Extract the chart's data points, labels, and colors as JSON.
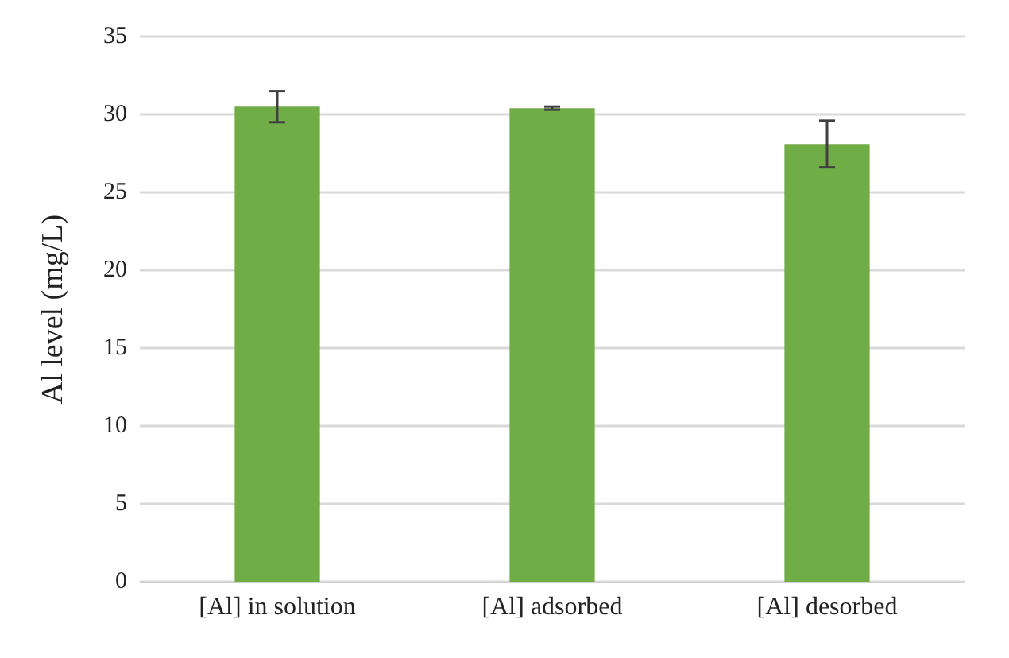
{
  "chart_data": {
    "type": "bar",
    "ylabel": "Al level (mg/L)",
    "categories": [
      "[Al] in solution",
      "[Al] adsorbed",
      "[Al] desorbed"
    ],
    "values": [
      30.5,
      30.4,
      28.1
    ],
    "errors": [
      1.0,
      0.1,
      1.5
    ],
    "color": "#70ad47",
    "ylim": [
      0,
      35
    ],
    "yticks": [
      0,
      5,
      10,
      15,
      20,
      25,
      30,
      35
    ],
    "grid": "y"
  }
}
